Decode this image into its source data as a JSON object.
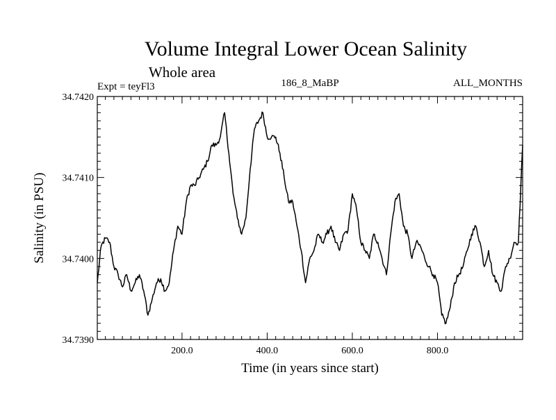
{
  "chart_data": {
    "type": "line",
    "title": "Volume Integral Lower Ocean Salinity",
    "subtitle": "Whole area",
    "experiment": "Expt = teyFl3",
    "period_label": "186_8_MaBP",
    "months_label": "ALL_MONTHS",
    "xlabel": "Time (in years since start)",
    "ylabel": "Salinity (in PSU)",
    "xlim": [
      1,
      1000
    ],
    "ylim": [
      34.739,
      34.742
    ],
    "x_ticks": [
      200,
      400,
      600,
      800
    ],
    "x_tick_labels": [
      "200.0",
      "400.0",
      "600.0",
      "800.0"
    ],
    "y_ticks": [
      34.739,
      34.74,
      34.741,
      34.742
    ],
    "y_tick_labels": [
      "34.7390",
      "34.7400",
      "34.7410",
      "34.7420"
    ],
    "grid": false,
    "series": [
      {
        "name": "Salinity",
        "x": [
          1,
          10,
          20,
          30,
          40,
          50,
          60,
          70,
          80,
          90,
          100,
          110,
          120,
          130,
          140,
          150,
          160,
          170,
          180,
          190,
          200,
          210,
          220,
          230,
          240,
          250,
          260,
          270,
          280,
          290,
          300,
          310,
          320,
          330,
          340,
          350,
          360,
          370,
          380,
          390,
          400,
          410,
          420,
          430,
          440,
          450,
          460,
          470,
          480,
          490,
          500,
          510,
          520,
          530,
          540,
          550,
          560,
          570,
          580,
          590,
          600,
          610,
          620,
          630,
          640,
          650,
          660,
          670,
          680,
          690,
          700,
          710,
          720,
          730,
          740,
          750,
          760,
          770,
          780,
          790,
          800,
          810,
          820,
          830,
          840,
          850,
          860,
          870,
          880,
          890,
          900,
          910,
          920,
          930,
          940,
          950,
          960,
          970,
          980,
          990,
          1000
        ],
        "values": [
          34.7397,
          34.74015,
          34.74025,
          34.7402,
          34.7399,
          34.7398,
          34.73965,
          34.7398,
          34.7396,
          34.7397,
          34.7398,
          34.7396,
          34.7393,
          34.7395,
          34.7397,
          34.73975,
          34.7396,
          34.7397,
          34.7401,
          34.7404,
          34.7403,
          34.7407,
          34.7409,
          34.7409,
          34.741,
          34.7411,
          34.7412,
          34.7414,
          34.7414,
          34.7415,
          34.7418,
          34.7413,
          34.7408,
          34.7405,
          34.7403,
          34.7405,
          34.7411,
          34.7416,
          34.7417,
          34.7418,
          34.7415,
          34.7415,
          34.7415,
          34.7413,
          34.741,
          34.7407,
          34.7407,
          34.7404,
          34.7401,
          34.7397,
          34.74,
          34.7401,
          34.7403,
          34.7402,
          34.7403,
          34.7404,
          34.7402,
          34.7401,
          34.7403,
          34.74035,
          34.7408,
          34.7406,
          34.7402,
          34.7401,
          34.74,
          34.7403,
          34.7402,
          34.74,
          34.7398,
          34.7403,
          34.7407,
          34.7408,
          34.7404,
          34.7403,
          34.74,
          34.7402,
          34.74015,
          34.74,
          34.7399,
          34.7398,
          34.7397,
          34.7393,
          34.7392,
          34.7394,
          34.7397,
          34.7398,
          34.7399,
          34.7401,
          34.7403,
          34.7404,
          34.7402,
          34.7399,
          34.7401,
          34.7398,
          34.7397,
          34.7396,
          34.7399,
          34.74,
          34.7402,
          34.7402,
          34.7414
        ]
      }
    ]
  }
}
